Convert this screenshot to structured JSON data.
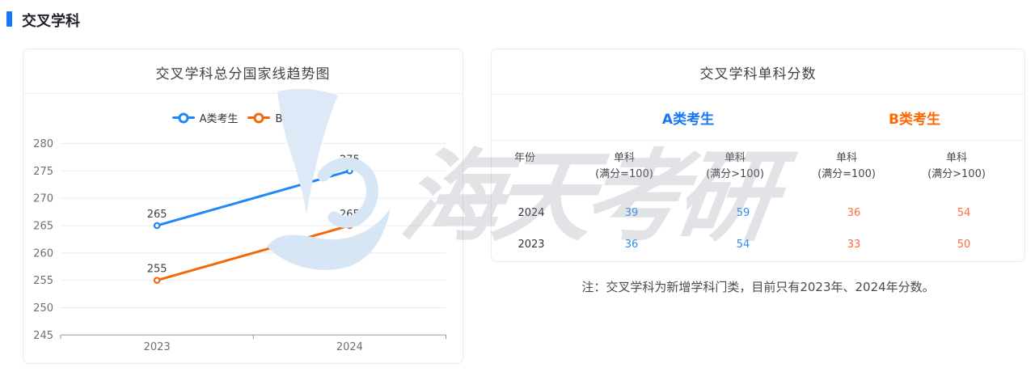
{
  "section_title": "交叉学科",
  "chart_card": {
    "title": "交叉学科总分国家线趋势图"
  },
  "chart_data": {
    "type": "line",
    "title": "交叉学科总分国家线趋势图",
    "categories": [
      "2023",
      "2024"
    ],
    "series": [
      {
        "name": "A类考生",
        "values": [
          265,
          275
        ],
        "color": "#1e88f5"
      },
      {
        "name": "B类考生",
        "values": [
          255,
          265
        ],
        "color": "#f2690d"
      }
    ],
    "ylim": [
      245,
      280
    ],
    "ytick_step": 5,
    "grid": true,
    "legend_position": "top"
  },
  "table_card": {
    "title": "交叉学科单科分数",
    "group_headers": [
      {
        "label": "A类考生",
        "color": "#1778f2"
      },
      {
        "label": "B类考生",
        "color": "#ff6600"
      }
    ],
    "columns": {
      "year": "年份",
      "cols": [
        {
          "l1": "单科",
          "l2": "(满分=100)"
        },
        {
          "l1": "单科",
          "l2": "(满分>100)"
        },
        {
          "l1": "单科",
          "l2": "(满分=100)"
        },
        {
          "l1": "单科",
          "l2": "(满分>100)"
        }
      ]
    },
    "rows": [
      {
        "year": "2024",
        "values": [
          "39",
          "59",
          "36",
          "54"
        ]
      },
      {
        "year": "2023",
        "values": [
          "36",
          "54",
          "33",
          "50"
        ]
      }
    ]
  },
  "note": "注：交叉学科为新增学科门类，目前只有2023年、2024年分数。",
  "watermark": {
    "text": "海天考研",
    "logo": "haitian-logo",
    "text_color": "#dfe2e7",
    "logo_color": "#d9e8f6"
  }
}
